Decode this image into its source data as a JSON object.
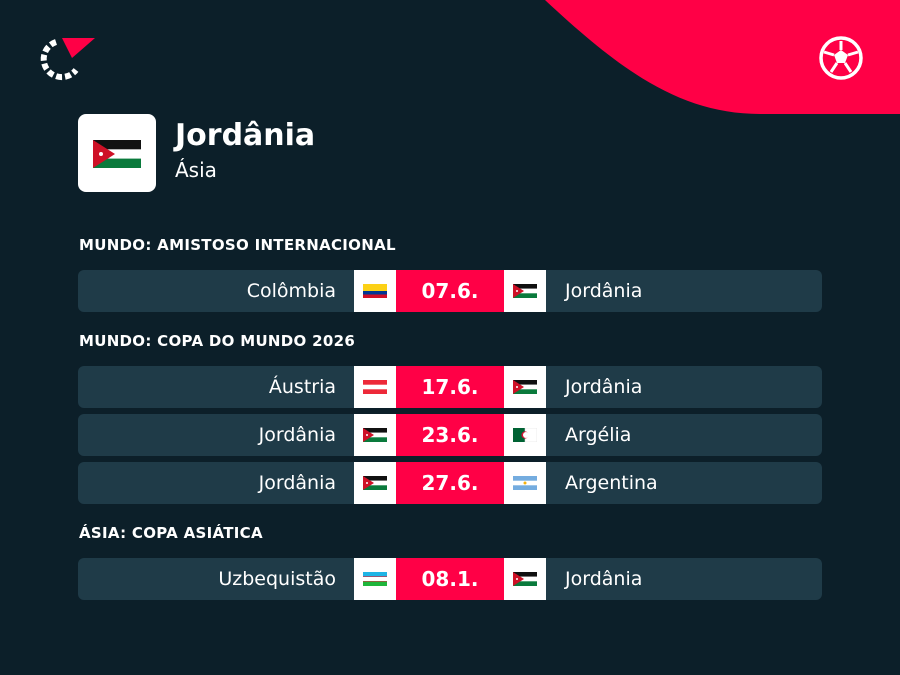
{
  "header": {
    "title": "Jordânia",
    "subtitle": "Ásia"
  },
  "sections": [
    {
      "title": "MUNDO: AMISTOSO INTERNACIONAL",
      "matches": [
        {
          "home": "Colômbia",
          "date": "07.6.",
          "away": "Jordânia"
        }
      ]
    },
    {
      "title": "MUNDO: COPA DO MUNDO 2026",
      "matches": [
        {
          "home": "Áustria",
          "date": "17.6.",
          "away": "Jordânia"
        },
        {
          "home": "Jordânia",
          "date": "23.6.",
          "away": "Argélia"
        },
        {
          "home": "Jordânia",
          "date": "27.6.",
          "away": "Argentina"
        }
      ]
    },
    {
      "title": "ÁSIA: COPA ASIÁTICA",
      "matches": [
        {
          "home": "Uzbequistão",
          "date": "08.1.",
          "away": "Jordânia"
        }
      ]
    }
  ]
}
